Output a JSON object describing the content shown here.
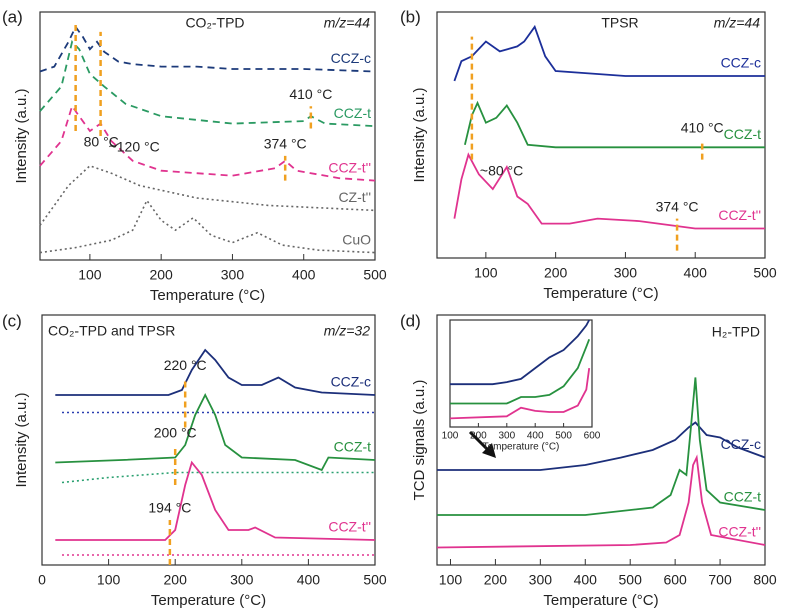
{
  "chart_data": [
    {
      "type": "line",
      "panel": "(a)",
      "title": "CO₂-TPD",
      "annotation": "m/z=44",
      "xlabel": "Temperature (°C)",
      "ylabel": "Intensity (a.u.)",
      "xlim": [
        30,
        500
      ],
      "xticks": [
        100,
        200,
        300,
        400,
        500
      ],
      "ylim": [
        0,
        100
      ],
      "series": [
        {
          "name": "CCZ-c",
          "color": "#1c3a7a",
          "style": "dashed",
          "x": [
            30,
            50,
            70,
            80,
            90,
            100,
            110,
            120,
            140,
            160,
            200,
            250,
            300,
            400,
            500
          ],
          "values": [
            76,
            78,
            88,
            94,
            90,
            85,
            88,
            84,
            80,
            79,
            78,
            78,
            77,
            77,
            76
          ]
        },
        {
          "name": "CCZ-t",
          "color": "#2a9a62",
          "style": "dashed",
          "x": [
            30,
            60,
            75,
            85,
            100,
            120,
            150,
            200,
            300,
            400,
            410,
            430,
            500
          ],
          "values": [
            60,
            70,
            88,
            85,
            75,
            70,
            63,
            58,
            55,
            56,
            58,
            55,
            54
          ]
        },
        {
          "name": "CCZ-t''",
          "color": "#e0338f",
          "style": "dashed",
          "x": [
            30,
            60,
            75,
            85,
            100,
            115,
            130,
            160,
            200,
            300,
            360,
            374,
            390,
            450,
            500
          ],
          "values": [
            38,
            48,
            62,
            58,
            52,
            55,
            48,
            40,
            36,
            34,
            37,
            40,
            36,
            33,
            32
          ]
        },
        {
          "name": "CZ-t''",
          "color": "#666666",
          "style": "dotted",
          "x": [
            30,
            50,
            70,
            100,
            130,
            170,
            250,
            350,
            500
          ],
          "values": [
            14,
            22,
            30,
            38,
            35,
            30,
            25,
            22,
            20
          ]
        },
        {
          "name": "CuO",
          "color": "#666666",
          "style": "dotted",
          "x": [
            30,
            80,
            130,
            160,
            180,
            200,
            220,
            245,
            270,
            300,
            335,
            370,
            420,
            500
          ],
          "values": [
            3,
            5,
            8,
            12,
            24,
            16,
            12,
            17,
            10,
            7,
            11,
            6,
            4,
            3
          ]
        }
      ],
      "markers": [
        {
          "x": 80,
          "y": [
            52,
            96
          ],
          "label": "80 °C"
        },
        {
          "x": 115,
          "y": [
            50,
            92
          ],
          "label": "~120 °C"
        },
        {
          "x": 410,
          "y": [
            53,
            62
          ],
          "label": "410 °C"
        },
        {
          "x": 374,
          "y": [
            32,
            42
          ],
          "label": "374 °C"
        }
      ]
    },
    {
      "type": "line",
      "panel": "(b)",
      "title": "TPSR",
      "annotation": "m/z=44",
      "xlabel": "Temperature (°C)",
      "ylabel": "Intensity (a.u.)",
      "xlim": [
        30,
        500
      ],
      "xticks": [
        100,
        200,
        300,
        400,
        500
      ],
      "ylim": [
        0,
        100
      ],
      "series": [
        {
          "name": "CCZ-c",
          "color": "#1c2f9a",
          "style": "solid",
          "x": [
            55,
            65,
            80,
            100,
            120,
            145,
            155,
            170,
            185,
            200,
            250,
            300,
            500
          ],
          "values": [
            72,
            80,
            82,
            88,
            84,
            86,
            88,
            94,
            82,
            76,
            75,
            74,
            74
          ]
        },
        {
          "name": "CCZ-t",
          "color": "#27913f",
          "style": "solid",
          "x": [
            70,
            80,
            88,
            100,
            115,
            130,
            145,
            160,
            200,
            500
          ],
          "values": [
            46,
            58,
            63,
            55,
            57,
            62,
            55,
            46,
            45,
            45
          ]
        },
        {
          "name": "CCZ-t''",
          "color": "#e0338f",
          "style": "solid",
          "x": [
            55,
            65,
            75,
            90,
            110,
            130,
            145,
            160,
            180,
            220,
            260,
            320,
            400,
            500
          ],
          "values": [
            16,
            32,
            42,
            34,
            28,
            37,
            25,
            22,
            14,
            14,
            16,
            15,
            12,
            12
          ]
        }
      ],
      "markers": [
        {
          "x": 80,
          "y": [
            40,
            90
          ],
          "label": "~80 °C"
        },
        {
          "x": 410,
          "y": [
            40,
            48
          ],
          "label": "410 °C"
        },
        {
          "x": 374,
          "y": [
            3,
            16
          ],
          "label": "374 °C"
        }
      ]
    },
    {
      "type": "line",
      "panel": "(c)",
      "title": "CO₂-TPD and TPSR",
      "annotation": "m/z=32",
      "xlabel": "Temperature (°C)",
      "ylabel": "Intensity (a.u.)",
      "xlim": [
        0,
        500
      ],
      "xticks": [
        0,
        100,
        200,
        300,
        400,
        500
      ],
      "ylim": [
        0,
        100
      ],
      "series": [
        {
          "name": "CCZ-c",
          "color": "#1c2f7a",
          "style": "solid",
          "x": [
            20,
            190,
            210,
            225,
            235,
            245,
            260,
            280,
            300,
            330,
            355,
            380,
            420,
            500
          ],
          "values": [
            68,
            68,
            70,
            78,
            82,
            86,
            82,
            75,
            72,
            72,
            75,
            71,
            69,
            68
          ]
        },
        {
          "color": "#2a3fb0",
          "style": "dotted",
          "x": [
            30,
            500
          ],
          "values": [
            61,
            61
          ]
        },
        {
          "name": "CCZ-t",
          "color": "#27913f",
          "style": "solid",
          "x": [
            20,
            120,
            200,
            215,
            230,
            245,
            260,
            275,
            300,
            380,
            420,
            430,
            500
          ],
          "values": [
            41,
            42,
            43,
            48,
            60,
            68,
            60,
            48,
            43,
            42,
            38,
            43,
            42
          ]
        },
        {
          "color": "#2aa070",
          "style": "dotted",
          "x": [
            30,
            100,
            200,
            500
          ],
          "values": [
            33,
            35,
            37,
            37
          ]
        },
        {
          "name": "CCZ-t''",
          "color": "#e0338f",
          "style": "solid",
          "x": [
            20,
            185,
            200,
            215,
            225,
            240,
            260,
            280,
            310,
            320,
            350,
            500
          ],
          "values": [
            10,
            10,
            14,
            32,
            41,
            36,
            22,
            14,
            14,
            15,
            11,
            10
          ]
        },
        {
          "color": "#e0338f",
          "style": "dotted",
          "x": [
            30,
            500
          ],
          "values": [
            4,
            4
          ]
        }
      ],
      "markers": [
        {
          "x": 215,
          "y": [
            55,
            75
          ],
          "label": "220 °C"
        },
        {
          "x": 200,
          "y": [
            32,
            48
          ],
          "label": "200 °C"
        },
        {
          "x": 192,
          "y": [
            0,
            18
          ],
          "label": "194 °C"
        }
      ]
    },
    {
      "type": "line",
      "panel": "(d)",
      "title": "H₂-TPD",
      "xlabel": "Temperature (°C)",
      "ylabel": "TCD signals (a.u.)",
      "xlim": [
        70,
        800
      ],
      "xticks": [
        100,
        200,
        300,
        400,
        500,
        600,
        700,
        800
      ],
      "ylim": [
        0,
        100
      ],
      "series": [
        {
          "name": "CCZ-c",
          "color": "#1c2f7a",
          "style": "solid",
          "x": [
            70,
            300,
            400,
            480,
            550,
            600,
            630,
            645,
            670,
            700,
            740,
            800
          ],
          "values": [
            38,
            38,
            40,
            43,
            46,
            50,
            55,
            57,
            52,
            51,
            47,
            43
          ]
        },
        {
          "name": "CCZ-t",
          "color": "#27913f",
          "style": "solid",
          "x": [
            70,
            400,
            550,
            590,
            610,
            625,
            635,
            645,
            655,
            670,
            700,
            800
          ],
          "values": [
            20,
            20,
            23,
            28,
            38,
            36,
            55,
            75,
            50,
            30,
            25,
            22
          ]
        },
        {
          "name": "CCZ-t''",
          "color": "#e0338f",
          "style": "solid",
          "x": [
            70,
            500,
            580,
            610,
            630,
            640,
            648,
            660,
            680,
            800
          ],
          "values": [
            7,
            8,
            9,
            12,
            25,
            40,
            43,
            25,
            12,
            8
          ]
        }
      ],
      "inset": {
        "type": "line",
        "xlabel": "Temperature (°C)",
        "xlim": [
          100,
          600
        ],
        "xticks": [
          100,
          200,
          300,
          400,
          500,
          600
        ],
        "ylim": [
          0,
          100
        ],
        "series": [
          {
            "color": "#1c2f7a",
            "style": "solid",
            "x": [
              100,
              250,
              300,
              350,
              400,
              450,
              500,
              550,
              580,
              590
            ],
            "values": [
              40,
              40,
              42,
              45,
              55,
              65,
              72,
              85,
              95,
              100
            ]
          },
          {
            "color": "#27913f",
            "style": "solid",
            "x": [
              100,
              300,
              350,
              400,
              450,
              500,
              550,
              580,
              590
            ],
            "values": [
              22,
              22,
              28,
              28,
              30,
              38,
              55,
              75,
              82
            ]
          },
          {
            "color": "#e0338f",
            "style": "solid",
            "x": [
              100,
              300,
              350,
              400,
              450,
              500,
              550,
              580,
              590
            ],
            "values": [
              8,
              10,
              18,
              15,
              14,
              14,
              20,
              35,
              55
            ]
          }
        ]
      }
    }
  ]
}
